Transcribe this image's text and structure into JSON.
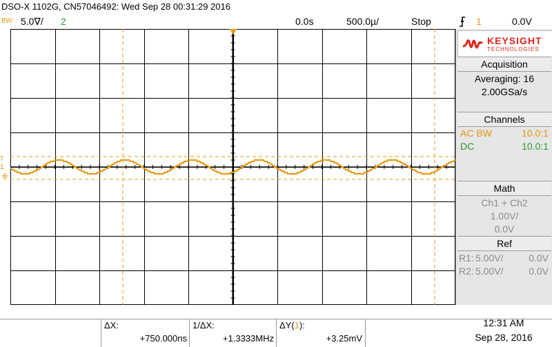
{
  "header": {
    "title": "DSO-X 1102G, CN57046492: Wed Sep 28 00:31:29 2016",
    "bw_label": "BW",
    "ch1_scale": "5.0∇/",
    "ch2_label": "2",
    "time_offset": "0.0s",
    "time_scale": "500.0µ/",
    "run_state": "Stop",
    "trigger_icon": "trigger-edge-icon",
    "trigger_source": "1",
    "trigger_level": "0.0V"
  },
  "brand": {
    "name": "KEYSIGHT",
    "sub": "TECHNOLOGIES",
    "logo_color": "#e2231a"
  },
  "acquisition": {
    "heading": "Acquisition",
    "mode": "Averaging: 16",
    "rate": "2.00GSa/s"
  },
  "channels": {
    "heading": "Channels",
    "ch1_label": "AC BW",
    "ch1_ratio": "10.0:1",
    "ch2_label": "DC",
    "ch2_ratio": "10.0:1"
  },
  "math": {
    "heading": "Math",
    "function": "Ch1 + Ch2",
    "scale": "1.00V/",
    "offset": "0.0V"
  },
  "ref": {
    "heading": "Ref",
    "r1_label": "R1:",
    "r1_scale": "5.00V/",
    "r1_offset": "0.0V",
    "r2_label": "R2:",
    "r2_scale": "5.00V/",
    "r2_offset": "0.0V"
  },
  "measurements": {
    "dx_label": "ΔX:",
    "dx_value": "+750.000ns",
    "inv_dx_label": "1/ΔX:",
    "inv_dx_value": "+1.3333MHz",
    "dy_label_prefix": "ΔY(",
    "dy_channel": "1",
    "dy_label_suffix": "):",
    "dy_value": "+3.25mV"
  },
  "clock": {
    "time": "12:31 AM",
    "date": "Sep 28, 2016"
  },
  "markers": {
    "trigger_marker": "T",
    "ch1_marker": "1",
    "ground_icon": "ground-icon"
  },
  "colors": {
    "ch1": "#e5960c",
    "ch2": "#2a9c2a",
    "grid": "#000000",
    "panel_bg": "#e6e6e6"
  },
  "waveform": {
    "period_divisions": 1.5,
    "amplitude_divisions": 0.2,
    "noise": "fine stair-step"
  }
}
